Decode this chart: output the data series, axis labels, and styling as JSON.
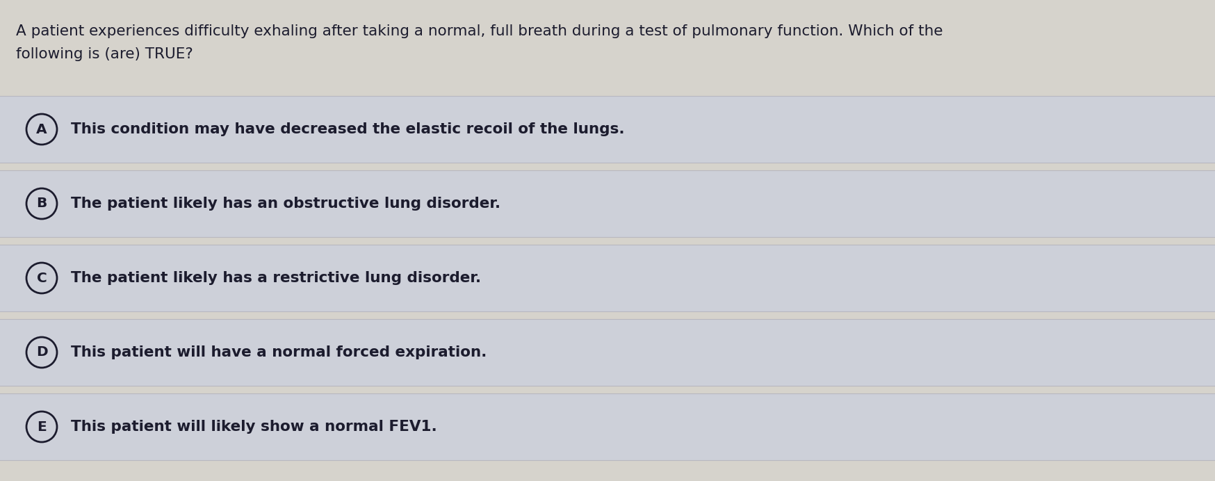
{
  "question": "A patient experiences difficulty exhaling after taking a normal, full breath during a test of pulmonary function. Which of the\nfollowing is (are) TRUE?",
  "options": [
    {
      "label": "A",
      "text": "This condition may have decreased the elastic recoil of the lungs."
    },
    {
      "label": "B",
      "text": "The patient likely has an obstructive lung disorder."
    },
    {
      "label": "C",
      "text": "The patient likely has a restrictive lung disorder."
    },
    {
      "label": "D",
      "text": "This patient will have a normal forced expiration."
    },
    {
      "label": "E",
      "text": "This patient will likely show a normal FEV1."
    }
  ],
  "bg_color": "#d6d3cc",
  "option_bg_color": "#cdd0d9",
  "text_color": "#1c1c2e",
  "circle_color": "#1c1c2e",
  "font_size_question": 15.5,
  "font_size_option": 15.5,
  "label_font_size": 14.5,
  "fig_width": 17.48,
  "fig_height": 6.92,
  "dpi": 100
}
